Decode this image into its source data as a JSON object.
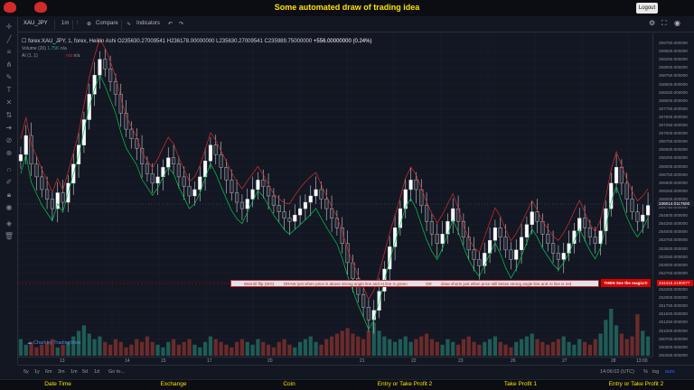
{
  "app": {
    "title": "Some automated draw of trading idea",
    "logout_label": "Logout"
  },
  "toolbar": {
    "symbol": "XAU_JPY",
    "interval": "1m",
    "compare_label": "Compare",
    "indicators_label": "Indicators"
  },
  "legend": {
    "series": "forex:XAU_JPY, 1, forex, Heikin Ashi",
    "ohlc": "O235630.27009541  H236178.00000000  L235630.27009541  C235989.75000000",
    "change": "+556.00000000 (0.24%)",
    "volume_label": "Volume (20)",
    "volume_value": "1.75K",
    "volume_na": "n/a",
    "ai_label": "AI (1, 1)",
    "ai_na1": "n/a",
    "ai_na2": "n/a"
  },
  "price_axis": {
    "labels": [
      "259750.000000",
      "259500.000000",
      "259250.000000",
      "259000.000000",
      "258750.000000",
      "258500.000000",
      "258250.000000",
      "258000.000000",
      "257750.000000",
      "257500.000000",
      "257250.000000",
      "257000.000000",
      "256750.000000",
      "256500.000000",
      "256250.000000",
      "256000.000000",
      "255750.000000",
      "255500.000000",
      "255250.000000",
      "255000.000000",
      "254750.000000",
      "254500.000000",
      "254250.000000",
      "254000.000000",
      "253750.000000",
      "253500.000000",
      "253250.000000",
      "253000.000000",
      "252750.000000",
      "252500.000000",
      "252250.000000",
      "252000.000000",
      "251750.000000",
      "251500.000000",
      "251250.000000",
      "251000.000000",
      "250750.000000",
      "250500.000000",
      "250250.000000"
    ],
    "current_price": "236014.0117500",
    "entry_price": "234416.2190077"
  },
  "banner": {
    "part1": "Wait till flip (SIG)",
    "part2": "DRAW just when price is above strong angle line and AI line is green",
    "part3": "OR",
    "part4": "draw shorts just when price still below strong angle line and AI line is red",
    "cta": "THEN See the magic!!!"
  },
  "watermark": "Chart by TradingView",
  "time_axis": {
    "labels": [
      "13",
      "14",
      "15",
      "17",
      "20",
      "21",
      "22",
      "23",
      "26",
      "27",
      "28",
      "13:00"
    ],
    "cursor_time": "14:06:02 (UTC)",
    "pct_label": "%",
    "log_label": "log",
    "auto_label": "auto"
  },
  "ranges": [
    "5y",
    "1y",
    "6m",
    "3m",
    "1m",
    "5d",
    "1d",
    "Go to..."
  ],
  "status_bar": [
    "Date Time",
    "Exchange",
    "Coin",
    "Entry or Take Profit 2",
    "Take Profit 1",
    "Entry or Take Profit 2"
  ],
  "colors": {
    "up": "#26a69a",
    "down": "#ef5350",
    "green_line": "#00c853",
    "red_line": "#d32f2f",
    "accent": "#ffe100"
  },
  "chart_data": {
    "type": "candlestick",
    "style": "Heikin Ashi",
    "closes": [
      256.3,
      256.9,
      256.0,
      255.6,
      255.2,
      254.9,
      254.6,
      255.1,
      254.8,
      255.4,
      256.0,
      256.6,
      257.4,
      258.2,
      258.8,
      259.3,
      259.0,
      258.6,
      258.2,
      257.6,
      257.1,
      256.8,
      256.5,
      256.0,
      255.7,
      255.4,
      255.6,
      255.9,
      256.2,
      256.0,
      255.6,
      255.3,
      255.0,
      255.2,
      255.6,
      256.1,
      256.6,
      256.3,
      255.9,
      255.5,
      255.1,
      254.8,
      254.6,
      254.9,
      255.2,
      255.5,
      255.3,
      255.0,
      254.7,
      254.5,
      254.3,
      254.2,
      254.4,
      254.6,
      254.8,
      255.0,
      255.2,
      254.9,
      254.6,
      254.3,
      254.0,
      253.5,
      252.9,
      252.4,
      251.9,
      251.5,
      251.1,
      251.4,
      252.0,
      252.7,
      253.4,
      254.0,
      254.6,
      255.2,
      255.5,
      255.2,
      254.7,
      254.2,
      253.8,
      253.5,
      253.8,
      254.2,
      254.6,
      254.2,
      253.7,
      253.3,
      253.0,
      252.8,
      253.2,
      253.6,
      254.0,
      253.7,
      253.3,
      253.0,
      253.3,
      253.7,
      254.1,
      254.5,
      254.2,
      253.8,
      253.5,
      253.2,
      253.0,
      253.2,
      253.5,
      253.9,
      254.3,
      254.0,
      253.7,
      253.5,
      253.9,
      254.6,
      255.4,
      255.9,
      255.4,
      254.9,
      254.5,
      254.2,
      254.4,
      254.7
    ],
    "volume": [
      0.6,
      0.4,
      0.5,
      0.3,
      0.4,
      0.5,
      0.6,
      0.3,
      0.4,
      0.5,
      0.7,
      0.9,
      1.1,
      0.8,
      0.6,
      0.7,
      0.5,
      0.4,
      0.6,
      0.5,
      0.3,
      0.4,
      0.6,
      0.5,
      0.7,
      0.5,
      0.4,
      0.3,
      0.5,
      0.6,
      0.4,
      0.5,
      0.6,
      0.4,
      0.3,
      0.5,
      0.7,
      0.6,
      0.5,
      0.4,
      0.3,
      0.5,
      0.6,
      0.5,
      0.4,
      0.6,
      0.5,
      0.4,
      0.3,
      0.5,
      0.6,
      0.4,
      0.3,
      0.5,
      0.6,
      0.7,
      0.5,
      0.4,
      0.6,
      0.7,
      0.8,
      0.9,
      1.0,
      0.8,
      0.7,
      0.6,
      0.9,
      1.2,
      0.9,
      0.7,
      0.6,
      0.5,
      0.6,
      0.7,
      0.5,
      0.6,
      0.7,
      0.8,
      0.6,
      0.5,
      0.4,
      0.6,
      0.5,
      0.4,
      0.6,
      0.7,
      0.5,
      0.4,
      0.5,
      0.6,
      0.7,
      0.5,
      0.4,
      0.3,
      0.5,
      0.6,
      0.7,
      0.8,
      0.6,
      0.5,
      0.4,
      0.5,
      0.6,
      0.7,
      0.5,
      0.4,
      0.6,
      0.5,
      0.4,
      0.6,
      0.8,
      1.3,
      1.7,
      1.1,
      0.8,
      0.6,
      0.7,
      1.5,
      0.9,
      0.7
    ]
  }
}
